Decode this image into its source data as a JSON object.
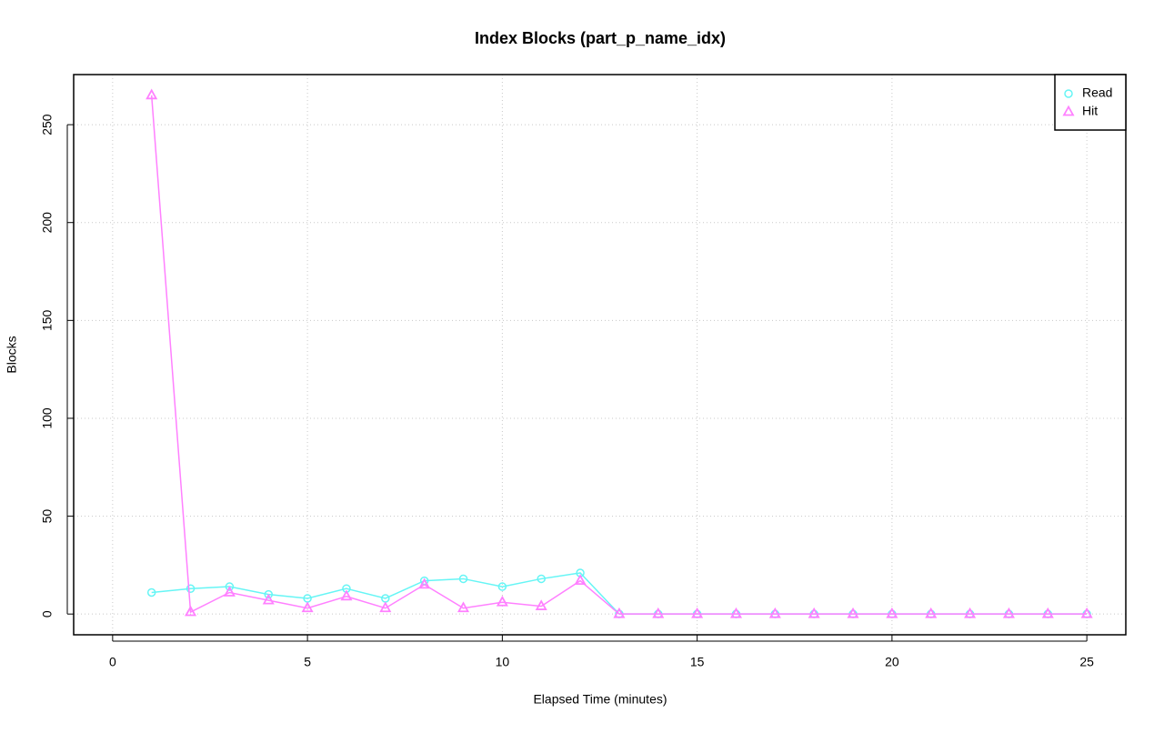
{
  "chart_data": {
    "type": "line",
    "title": "Index Blocks (part_p_name_idx)",
    "x_label": "Elapsed Time (minutes)",
    "y_label": "Blocks",
    "x": [
      1,
      2,
      3,
      4,
      5,
      6,
      7,
      8,
      9,
      10,
      11,
      12,
      13,
      14,
      15,
      16,
      17,
      18,
      19,
      20,
      21,
      22,
      23,
      24,
      25
    ],
    "series": [
      {
        "name": "Read",
        "color": "#66f5f5",
        "marker": "circle",
        "values": [
          11,
          13,
          14,
          10,
          8,
          13,
          8,
          17,
          18,
          14,
          18,
          21,
          0,
          0,
          0,
          0,
          0,
          0,
          0,
          0,
          0,
          0,
          0,
          0,
          0
        ]
      },
      {
        "name": "Hit",
        "color": "#ff80ff",
        "marker": "triangle",
        "values": [
          265,
          1,
          11,
          7,
          3,
          9,
          3,
          15,
          3,
          6,
          4,
          17,
          0,
          0,
          0,
          0,
          0,
          0,
          0,
          0,
          0,
          0,
          0,
          0,
          0
        ]
      }
    ],
    "xlim": [
      -1,
      26
    ],
    "xticks": [
      0,
      5,
      10,
      15,
      20,
      25
    ],
    "ylim": [
      -10.6,
      275.6
    ],
    "yticks": [
      0,
      50,
      100,
      150,
      200,
      250
    ],
    "grid": true,
    "legend": "top-right"
  }
}
